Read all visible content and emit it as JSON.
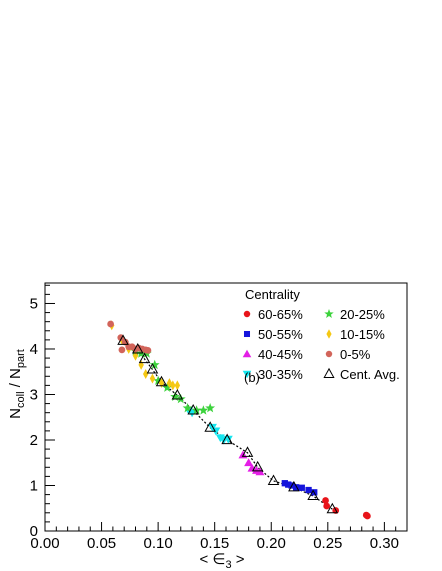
{
  "chart_data": {
    "type": "scatter",
    "xlabel_prefix": "< ",
    "xlabel_symbol": "∈",
    "xlabel_sub": "3",
    "xlabel_suffix": " >",
    "ylabel_main1": "N",
    "ylabel_sub1": "coll",
    "ylabel_sep": " / N",
    "ylabel_sub2": "part",
    "xlim": [
      0.0,
      0.32
    ],
    "ylim": [
      0,
      5.45
    ],
    "x_ticks": [
      0.0,
      0.05,
      0.1,
      0.15,
      0.2,
      0.25,
      0.3
    ],
    "x_tick_labels": [
      "0.00",
      "0.05",
      "0.10",
      "0.15",
      "0.20",
      "0.25",
      "0.30"
    ],
    "y_ticks": [
      0,
      1,
      2,
      3,
      4,
      5
    ],
    "y_tick_labels": [
      "0",
      "1",
      "2",
      "3",
      "4",
      "5"
    ],
    "legend_title": "Centrality",
    "legend_position": "top-right",
    "panel_label": "(b)",
    "series": [
      {
        "name": "60-65%",
        "marker": "circle",
        "color": "#e8141a",
        "points": [
          [
            0.248,
            0.67
          ],
          [
            0.249,
            0.55
          ],
          [
            0.257,
            0.45
          ],
          [
            0.284,
            0.35
          ],
          [
            0.285,
            0.33
          ]
        ]
      },
      {
        "name": "50-55%",
        "marker": "square",
        "color": "#1414dc",
        "points": [
          [
            0.212,
            1.05
          ],
          [
            0.215,
            1.02
          ],
          [
            0.218,
            1.0
          ],
          [
            0.222,
            0.96
          ],
          [
            0.227,
            0.95
          ],
          [
            0.233,
            0.9
          ],
          [
            0.238,
            0.85
          ]
        ]
      },
      {
        "name": "40-45%",
        "marker": "triangle-up",
        "color": "#e41ee6",
        "points": [
          [
            0.175,
            1.67
          ],
          [
            0.18,
            1.5
          ],
          [
            0.183,
            1.38
          ],
          [
            0.187,
            1.33
          ],
          [
            0.19,
            1.3
          ]
        ]
      },
      {
        "name": "30-35%",
        "marker": "triangle-down",
        "color": "#14e6f0",
        "points": [
          [
            0.127,
            2.65
          ],
          [
            0.13,
            2.6
          ],
          [
            0.148,
            2.28
          ],
          [
            0.151,
            2.2
          ],
          [
            0.155,
            2.05
          ],
          [
            0.158,
            2.0
          ],
          [
            0.162,
            2.02
          ]
        ]
      },
      {
        "name": "20-25%",
        "marker": "star",
        "color": "#3cd23c",
        "points": [
          [
            0.08,
            3.95
          ],
          [
            0.085,
            3.9
          ],
          [
            0.09,
            3.9
          ],
          [
            0.097,
            3.65
          ],
          [
            0.1,
            3.3
          ],
          [
            0.108,
            3.15
          ],
          [
            0.115,
            2.95
          ],
          [
            0.12,
            2.9
          ],
          [
            0.126,
            2.7
          ],
          [
            0.134,
            2.65
          ],
          [
            0.14,
            2.65
          ],
          [
            0.146,
            2.7
          ]
        ]
      },
      {
        "name": "10-15%",
        "marker": "diamond",
        "color": "#f5c814",
        "points": [
          [
            0.059,
            4.52
          ],
          [
            0.068,
            4.2
          ],
          [
            0.074,
            4.0
          ],
          [
            0.08,
            3.85
          ],
          [
            0.085,
            3.65
          ],
          [
            0.089,
            3.45
          ],
          [
            0.095,
            3.35
          ],
          [
            0.103,
            3.25
          ],
          [
            0.11,
            3.25
          ],
          [
            0.113,
            3.2
          ],
          [
            0.117,
            3.2
          ]
        ]
      },
      {
        "name": "0-5%",
        "marker": "circle",
        "color": "#d2645a",
        "points": [
          [
            0.058,
            4.55
          ],
          [
            0.067,
            4.25
          ],
          [
            0.071,
            4.15
          ],
          [
            0.074,
            4.05
          ],
          [
            0.077,
            4.05
          ],
          [
            0.08,
            4.0
          ],
          [
            0.083,
            4.02
          ],
          [
            0.086,
            4.0
          ],
          [
            0.089,
            3.98
          ],
          [
            0.091,
            3.97
          ],
          [
            0.068,
            3.98
          ]
        ]
      },
      {
        "name": "Cent. Avg.",
        "marker": "open-triangle",
        "color": "#000000",
        "points": [
          [
            0.069,
            4.18
          ],
          [
            0.082,
            3.99
          ],
          [
            0.088,
            3.78
          ],
          [
            0.095,
            3.55
          ],
          [
            0.103,
            3.27
          ],
          [
            0.117,
            2.98
          ],
          [
            0.131,
            2.65
          ],
          [
            0.146,
            2.27
          ],
          [
            0.161,
            2.0
          ],
          [
            0.179,
            1.72
          ],
          [
            0.188,
            1.4
          ],
          [
            0.202,
            1.1
          ],
          [
            0.22,
            0.96
          ],
          [
            0.237,
            0.77
          ],
          [
            0.254,
            0.48
          ]
        ]
      }
    ]
  }
}
